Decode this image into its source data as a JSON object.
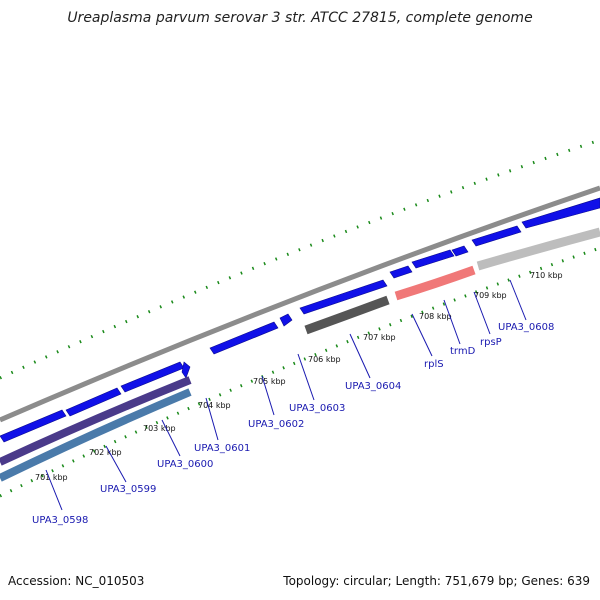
{
  "title": "Ureaplasma parvum serovar 3 str. ATCC 27815, complete genome",
  "footer": {
    "accession": "Accession: NC_010503",
    "summary": "Topology: circular; Length: 751,679 bp; Genes: 639"
  },
  "colors": {
    "backbone": "#8c8c8c",
    "cds_forward": "#1010e8",
    "cds_reverse_purple": "#4a3a8a",
    "cds_reverse_steel": "#4a7aaa",
    "cds_reverse_dark": "#555555",
    "cds_reverse_salmon": "#f07878",
    "cds_reverse_light": "#bdbdbd",
    "ticks": "#1a8a1a",
    "label_text": "#1a1ab0"
  },
  "tick_labels": [
    "701 kbp",
    "702 kbp",
    "703 kbp",
    "704 kbp",
    "705 kbp",
    "706 kbp",
    "707 kbp",
    "708 kbp",
    "709 kbp",
    "710 kbp"
  ],
  "gene_labels": [
    "UPA3_0598",
    "UPA3_0599",
    "UPA3_0600",
    "UPA3_0601",
    "UPA3_0602",
    "UPA3_0603",
    "UPA3_0604",
    "rplS",
    "trmD",
    "rpsP",
    "UPA3_0608"
  ]
}
